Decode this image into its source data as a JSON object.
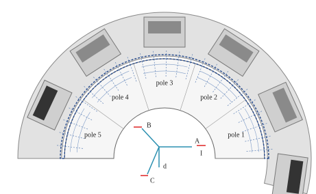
{
  "poles": [
    "pole 1",
    "pole 2",
    "pole 3",
    "pole 4",
    "pole 5"
  ],
  "phases": {
    "a": "A",
    "b": "B",
    "c": "C"
  },
  "axes": {
    "d": "d",
    "current": "I"
  }
}
